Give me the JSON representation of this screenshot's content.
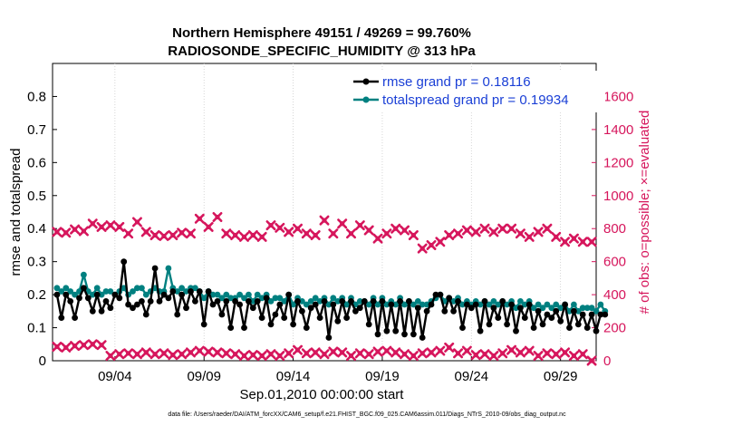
{
  "chart_data": {
    "type": "line",
    "title_line1": "Northern Hemisphere 49151 / 49269 = 99.760%",
    "title_line2": "RADIOSONDE_SPECIFIC_HUMIDITY @ 313 hPa",
    "ylabel": "rmse and totalspread",
    "ylabel_right": "# of obs: o=possible; ×=evaluated",
    "xlabel": "Sep.01,2010 00:00:00 start",
    "footnote": "data file: /Users/raeder/DAI/ATM_forcXX/CAM6_setup/f.e21.FHIST_BGC.f09_025.CAM6assim.011/Diags_NTrS_2010-09/obs_diag_output.nc",
    "xlim": [
      0,
      30.5
    ],
    "ylim": [
      0,
      0.9
    ],
    "ylim_right": [
      0,
      1800
    ],
    "xticks": [
      3.5,
      8.5,
      13.5,
      18.5,
      23.5,
      28.5
    ],
    "xtick_labels": [
      "09/04",
      "09/09",
      "09/14",
      "09/19",
      "09/24",
      "09/29"
    ],
    "yticks": [
      0,
      0.1,
      0.2,
      0.3,
      0.4,
      0.5,
      0.6,
      0.7,
      0.8
    ],
    "ytick_labels": [
      "0",
      "0.1",
      "0.2",
      "0.3",
      "0.4",
      "0.5",
      "0.6",
      "0.7",
      "0.8"
    ],
    "yticks_right": [
      0,
      200,
      400,
      600,
      800,
      1000,
      1200,
      1400,
      1600
    ],
    "ytick_labels_right": [
      "0",
      "200",
      "400",
      "600",
      "800",
      "1000",
      "1200",
      "1400",
      "1600"
    ],
    "colors": {
      "rmse": "#000000",
      "spread": "#008080",
      "obs": "#d6165c",
      "legend_text": "#1a3fd6"
    },
    "series": [
      {
        "name": "rmse grand pr = 0.18116",
        "values": [
          0.2,
          0.13,
          0.2,
          0.18,
          0.13,
          0.19,
          0.22,
          0.19,
          0.15,
          0.2,
          0.15,
          0.18,
          0.16,
          0.2,
          0.19,
          0.3,
          0.17,
          0.16,
          0.17,
          0.18,
          0.14,
          0.18,
          0.28,
          0.18,
          0.2,
          0.19,
          0.21,
          0.14,
          0.2,
          0.16,
          0.21,
          0.18,
          0.21,
          0.11,
          0.21,
          0.17,
          0.18,
          0.14,
          0.18,
          0.1,
          0.18,
          0.17,
          0.1,
          0.18,
          0.16,
          0.18,
          0.13,
          0.19,
          0.11,
          0.14,
          0.17,
          0.13,
          0.2,
          0.11,
          0.18,
          0.15,
          0.1,
          0.16,
          0.17,
          0.13,
          0.18,
          0.07,
          0.17,
          0.12,
          0.18,
          0.13,
          0.18,
          0.15,
          0.16,
          0.18,
          0.11,
          0.18,
          0.08,
          0.18,
          0.09,
          0.17,
          0.09,
          0.18,
          0.08,
          0.18,
          0.08,
          0.16,
          0.07,
          0.15,
          0.17,
          0.2,
          0.2,
          0.15,
          0.19,
          0.15,
          0.18,
          0.1,
          0.17,
          0.16,
          0.17,
          0.09,
          0.18,
          0.11,
          0.16,
          0.13,
          0.18,
          0.11,
          0.17,
          0.09,
          0.16,
          0.13,
          0.17,
          0.1,
          0.15,
          0.11,
          0.14,
          0.13,
          0.15,
          0.12,
          0.17,
          0.1,
          0.15,
          0.11,
          0.14,
          0.1,
          0.14,
          0.09,
          0.14,
          0.14
        ]
      },
      {
        "name": "totalspread grand pr = 0.19934",
        "values": [
          0.22,
          0.21,
          0.22,
          0.21,
          0.2,
          0.21,
          0.26,
          0.21,
          0.2,
          0.22,
          0.2,
          0.21,
          0.21,
          0.2,
          0.21,
          0.22,
          0.2,
          0.21,
          0.22,
          0.22,
          0.2,
          0.21,
          0.22,
          0.21,
          0.21,
          0.28,
          0.22,
          0.21,
          0.22,
          0.21,
          0.22,
          0.22,
          0.21,
          0.19,
          0.21,
          0.2,
          0.2,
          0.19,
          0.2,
          0.19,
          0.19,
          0.2,
          0.19,
          0.2,
          0.18,
          0.2,
          0.19,
          0.2,
          0.18,
          0.19,
          0.19,
          0.18,
          0.2,
          0.17,
          0.19,
          0.18,
          0.17,
          0.18,
          0.19,
          0.18,
          0.19,
          0.17,
          0.19,
          0.18,
          0.19,
          0.17,
          0.19,
          0.17,
          0.18,
          0.18,
          0.17,
          0.19,
          0.17,
          0.19,
          0.17,
          0.18,
          0.17,
          0.19,
          0.17,
          0.18,
          0.17,
          0.18,
          0.17,
          0.17,
          0.18,
          0.19,
          0.2,
          0.18,
          0.19,
          0.18,
          0.19,
          0.17,
          0.18,
          0.17,
          0.18,
          0.17,
          0.18,
          0.17,
          0.18,
          0.17,
          0.18,
          0.17,
          0.18,
          0.16,
          0.18,
          0.17,
          0.18,
          0.16,
          0.17,
          0.16,
          0.17,
          0.16,
          0.17,
          0.16,
          0.17,
          0.15,
          0.17,
          0.15,
          0.16,
          0.16,
          0.16,
          0.15,
          0.17,
          0.15
        ]
      },
      {
        "name": "# of obs possible",
        "axis": "right",
        "x": [
          0.25,
          0.75,
          1.25,
          1.75,
          2.25,
          2.75,
          3.25,
          3.75,
          4.25,
          4.75,
          5.25,
          5.75,
          6.25,
          6.75,
          7.25,
          7.75,
          8.25,
          8.75,
          9.25,
          9.75,
          10.25,
          10.75,
          11.25,
          11.75,
          12.25,
          12.75,
          13.25,
          13.75,
          14.25,
          14.75,
          15.25,
          15.75,
          16.25,
          16.75,
          17.25,
          17.75,
          18.25,
          18.75,
          19.25,
          19.75,
          20.25,
          20.75,
          21.25,
          21.75,
          22.25,
          22.75,
          23.25,
          23.75,
          24.25,
          24.75,
          25.25,
          25.75,
          26.25,
          26.75,
          27.25,
          27.75,
          28.25,
          28.75,
          29.25,
          29.75,
          30.25
        ],
        "values": [
          780,
          775,
          795,
          785,
          830,
          810,
          820,
          810,
          770,
          840,
          780,
          760,
          755,
          760,
          775,
          770,
          860,
          810,
          870,
          770,
          760,
          750,
          760,
          750,
          820,
          805,
          780,
          800,
          770,
          760,
          850,
          770,
          830,
          770,
          820,
          790,
          740,
          770,
          800,
          790,
          760,
          680,
          700,
          720,
          760,
          770,
          790,
          780,
          800,
          780,
          800,
          800,
          770,
          750,
          780,
          800,
          750,
          720,
          740,
          720,
          720
        ]
      },
      {
        "name": "# of obs evaluated",
        "axis": "right",
        "x": [
          0.25,
          0.75,
          1.25,
          1.75,
          2.25,
          2.75,
          3.25,
          3.75,
          4.25,
          4.75,
          5.25,
          5.75,
          6.25,
          6.75,
          7.25,
          7.75,
          8.25,
          8.75,
          9.25,
          9.75,
          10.25,
          10.75,
          11.25,
          11.75,
          12.25,
          12.75,
          13.25,
          13.75,
          14.25,
          14.75,
          15.25,
          15.75,
          16.25,
          16.75,
          17.25,
          17.75,
          18.25,
          18.75,
          19.25,
          19.75,
          20.25,
          20.75,
          21.25,
          21.75,
          22.25,
          22.75,
          23.25,
          23.75,
          24.25,
          24.75,
          25.25,
          25.75,
          26.25,
          26.75,
          27.25,
          27.75,
          28.25,
          28.75,
          29.25,
          29.75,
          30.25
        ],
        "values": [
          85,
          80,
          90,
          95,
          100,
          95,
          30,
          40,
          45,
          40,
          50,
          40,
          45,
          35,
          40,
          50,
          60,
          55,
          50,
          45,
          40,
          30,
          35,
          30,
          40,
          30,
          45,
          65,
          45,
          50,
          40,
          55,
          50,
          30,
          45,
          40,
          55,
          60,
          50,
          40,
          30,
          45,
          50,
          60,
          80,
          45,
          60,
          35,
          40,
          30,
          45,
          65,
          50,
          60,
          30,
          45,
          40,
          50,
          30,
          40,
          0
        ]
      }
    ],
    "legend": [
      "rmse grand pr = 0.18116",
      "totalspread grand pr = 0.19934"
    ]
  }
}
